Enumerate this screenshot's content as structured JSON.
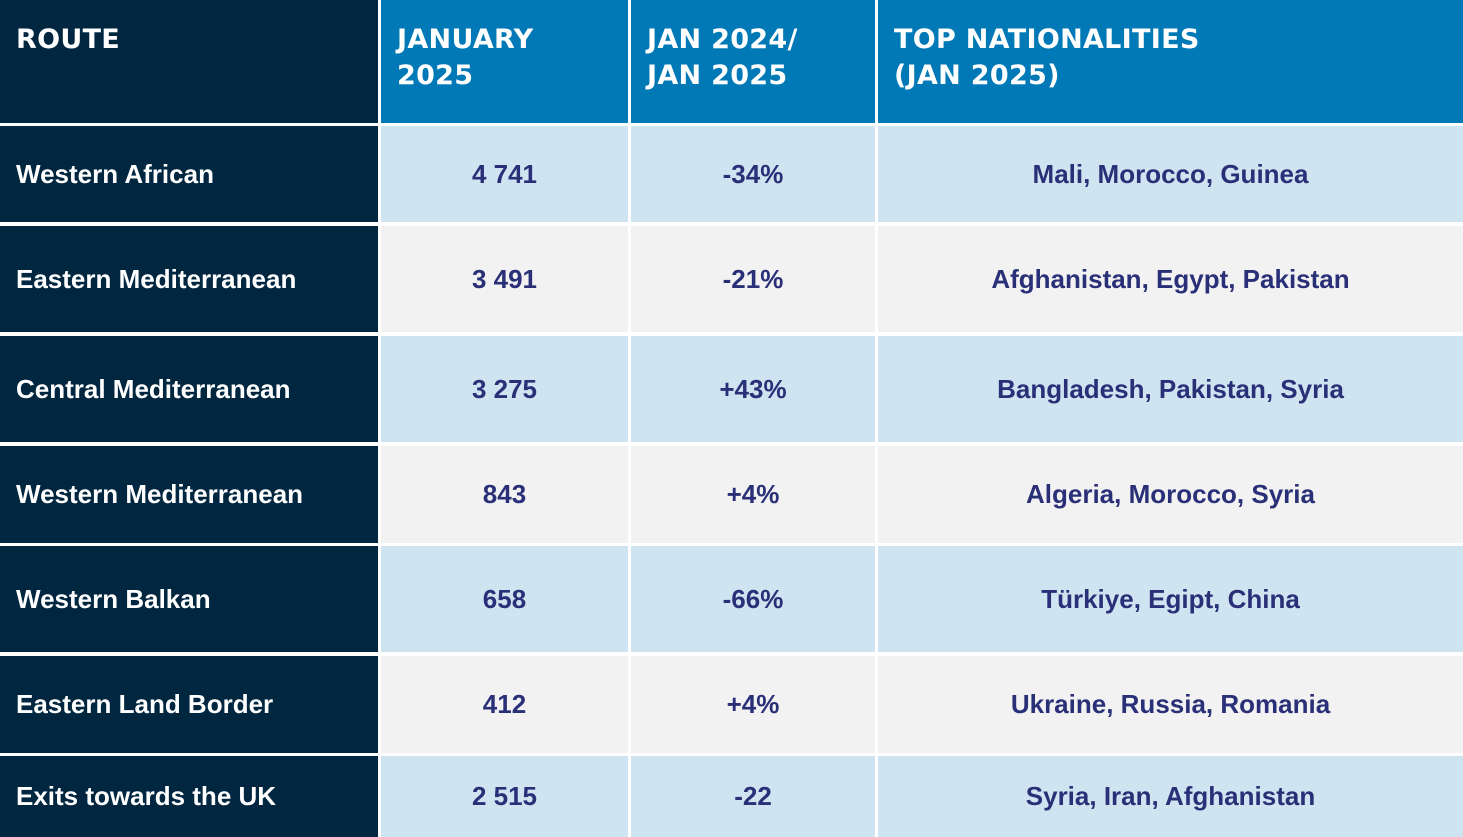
{
  "table": {
    "headers": [
      "ROUTE",
      "JANUARY\n2025",
      "JAN 2024/\nJAN 2025",
      "TOP NATIONALITIES\n(JAN 2025)"
    ],
    "rows": [
      {
        "route": "Western African",
        "january_2025": "4 741",
        "change": "-34%",
        "nationalities": "Mali, Morocco, Guinea"
      },
      {
        "route": "Eastern Mediterranean",
        "january_2025": "3 491",
        "change": "-21%",
        "nationalities": "Afghanistan, Egypt, Pakistan"
      },
      {
        "route": "Central Mediterranean",
        "january_2025": "3 275",
        "change": "+43%",
        "nationalities": "Bangladesh, Pakistan, Syria"
      },
      {
        "route": "Western Mediterranean",
        "january_2025": "843",
        "change": "+4%",
        "nationalities": "Algeria, Morocco, Syria"
      },
      {
        "route": "Western Balkan",
        "january_2025": "658",
        "change": "-66%",
        "nationalities": "Türkiye, Egipt, China"
      },
      {
        "route": "Eastern Land Border",
        "january_2025": "412",
        "change": "+4%",
        "nationalities": "Ukraine, Russia, Romania"
      },
      {
        "route": "Exits towards the UK",
        "january_2025": "2 515",
        "change": "-22",
        "nationalities": "Syria, Iran, Afghanistan"
      }
    ]
  },
  "colors": {
    "route_column": "#002640",
    "header_blue": "#0079b6",
    "row_light_blue": "#cfe4f1",
    "row_light_gray": "#f2f2f2",
    "data_text": "#2a3078"
  }
}
